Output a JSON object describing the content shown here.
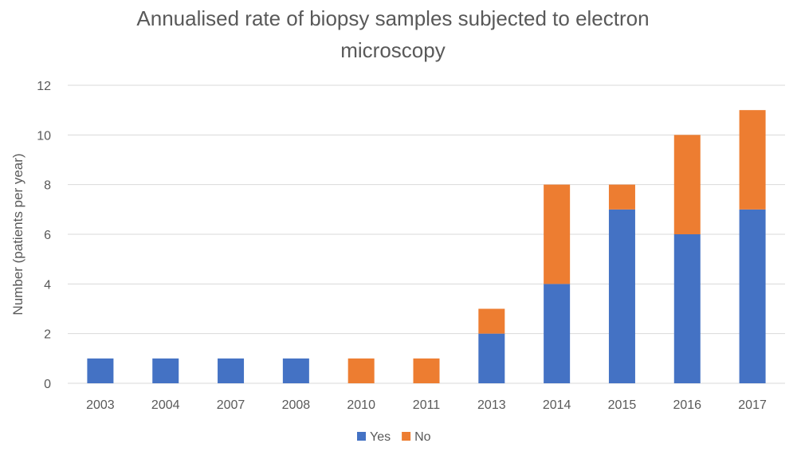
{
  "chart_data": {
    "type": "bar",
    "stacked": true,
    "title_lines": [
      "Annualised rate of biopsy samples subjected to electron",
      "microscopy"
    ],
    "xlabel": "",
    "ylabel": "Number (patients per year)",
    "categories": [
      "2003",
      "2004",
      "2007",
      "2008",
      "2010",
      "2011",
      "2013",
      "2014",
      "2015",
      "2016",
      "2017"
    ],
    "series": [
      {
        "name": "Yes",
        "color": "#4472c4",
        "values": [
          1,
          1,
          1,
          1,
          0,
          0,
          2,
          4,
          7,
          6,
          7
        ]
      },
      {
        "name": "No",
        "color": "#ed7d31",
        "values": [
          0,
          0,
          0,
          0,
          1,
          1,
          1,
          4,
          1,
          4,
          4
        ]
      }
    ],
    "ylim": [
      0,
      12
    ],
    "yticks": [
      "0",
      "2",
      "4",
      "6",
      "8",
      "10",
      "12"
    ],
    "grid": true,
    "legend_position": "bottom"
  }
}
